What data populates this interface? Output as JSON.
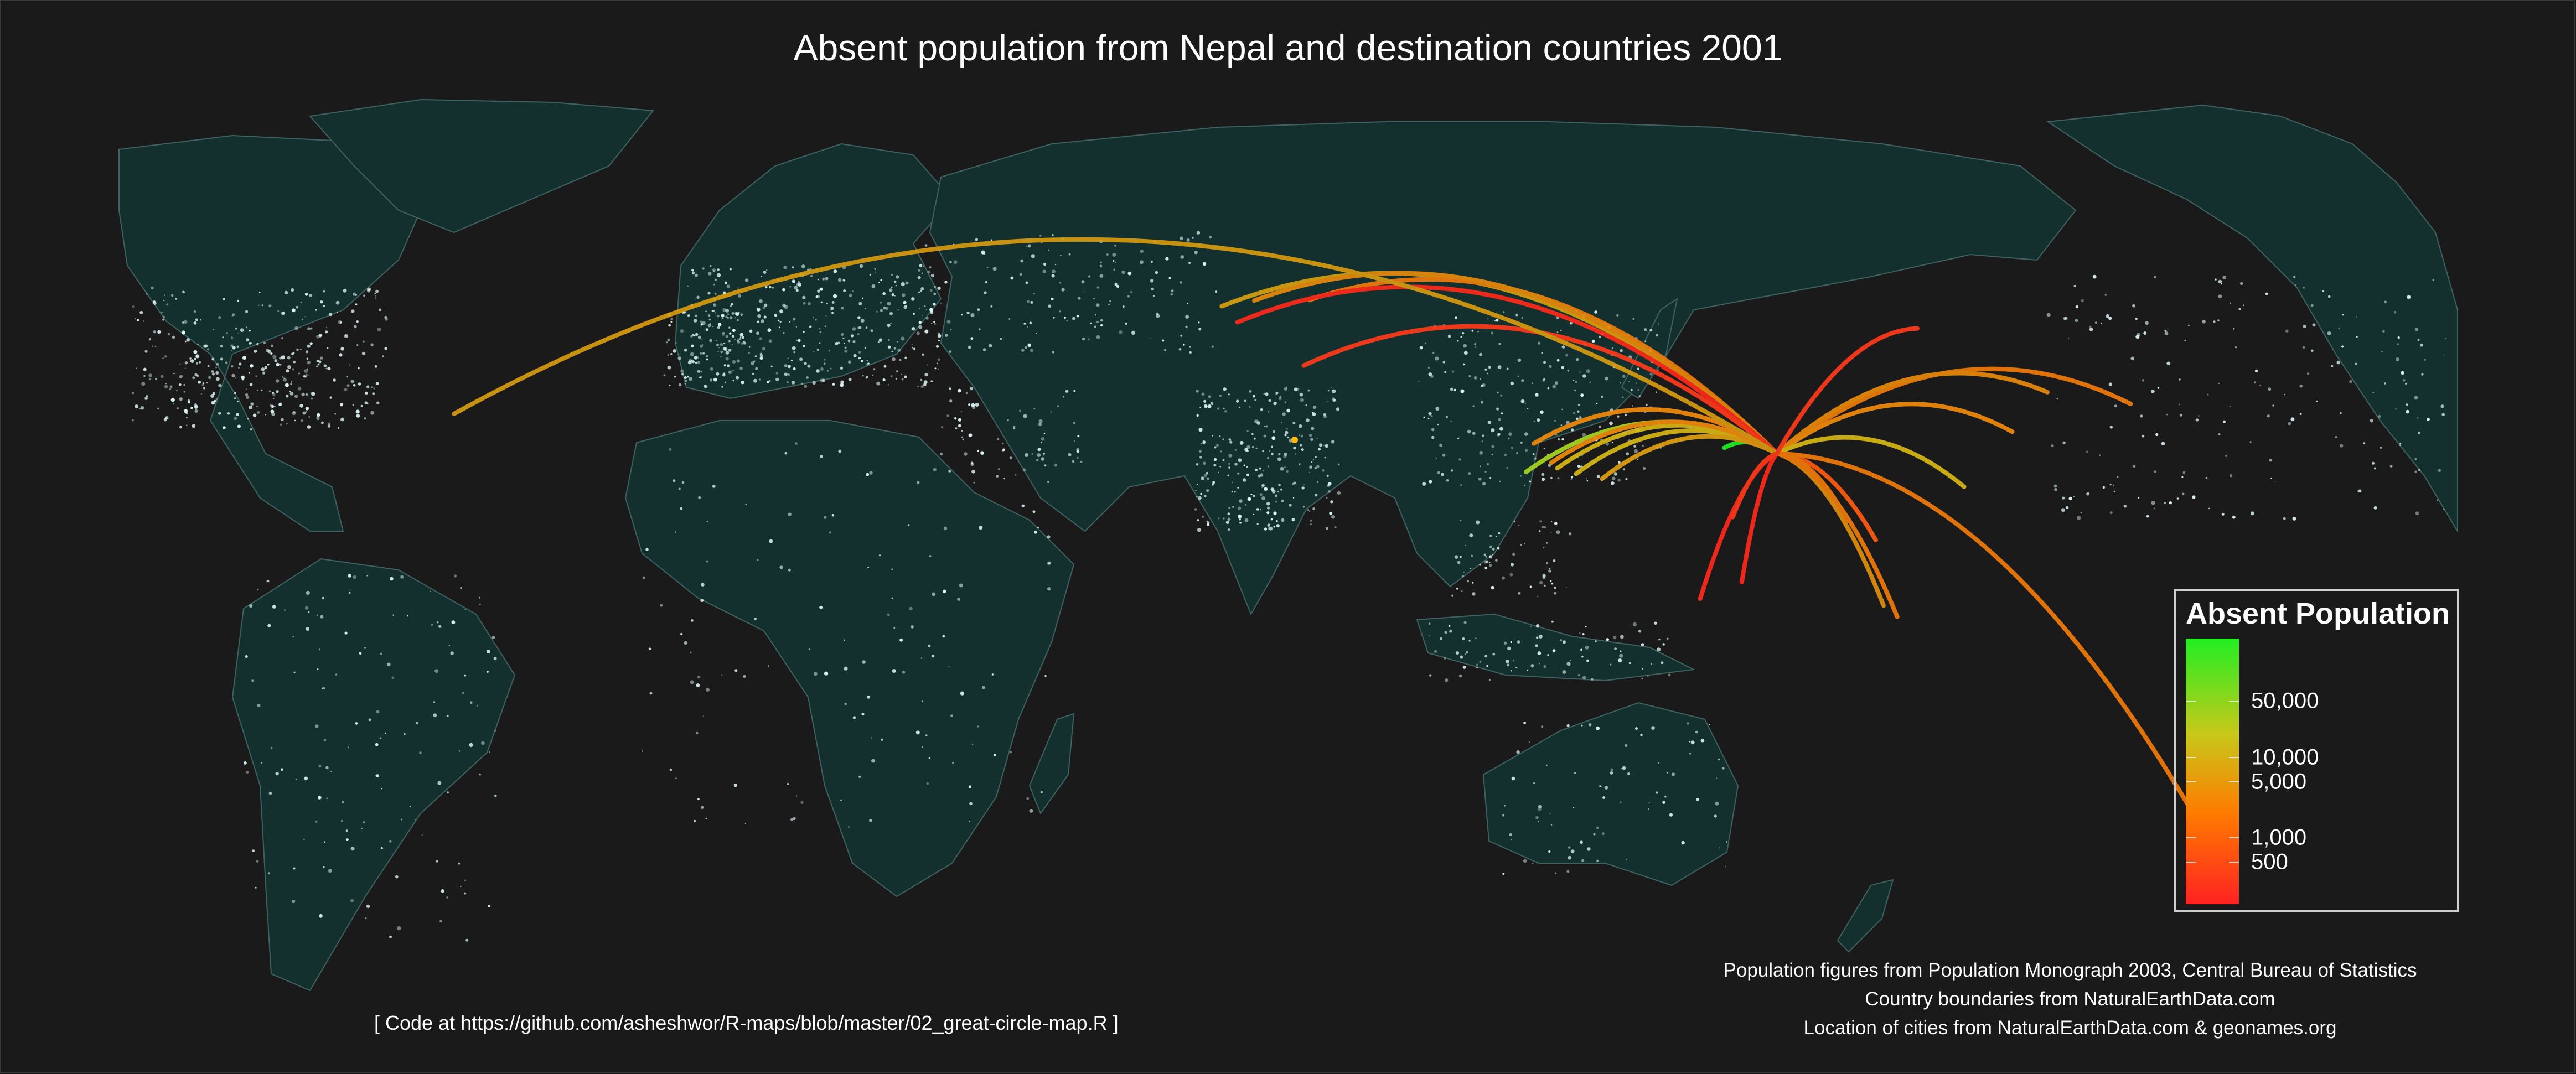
{
  "title": "Absent population from Nepal and destination countries 2001",
  "colors": {
    "background": "#1a1a1a",
    "land": "#13302f",
    "land_border": "#3f6362",
    "city_lights": "#e6ffff",
    "low": "#ff2222",
    "mid": "#ff7a00",
    "high": "#c8c81a",
    "top": "#22ee22"
  },
  "legend": {
    "title": "Absent Population",
    "ticks": [
      {
        "value": 50000,
        "label": "50,000"
      },
      {
        "value": 10000,
        "label": "10,000"
      },
      {
        "value": 5000,
        "label": "5,000"
      },
      {
        "value": 1000,
        "label": "1,000"
      },
      {
        "value": 500,
        "label": "500"
      }
    ]
  },
  "origin": {
    "lon": 85.3,
    "lat": 27.7
  },
  "flows": [
    {
      "lon": 77.2,
      "lat": 28.6,
      "color": "#22ee22"
    },
    {
      "lon": 46.7,
      "lat": 24.7,
      "color": "#a8d620"
    },
    {
      "lon": 51.5,
      "lat": 25.3,
      "color": "#d7b814"
    },
    {
      "lon": 54.4,
      "lat": 24.4,
      "color": "#d7b814"
    },
    {
      "lon": 58.4,
      "lat": 23.6,
      "color": "#e0a010"
    },
    {
      "lon": 47.9,
      "lat": 29.3,
      "color": "#f08a0a"
    },
    {
      "lon": 50.6,
      "lat": 26.2,
      "color": "#f08a0a"
    },
    {
      "lon": -0.1,
      "lat": 51.5,
      "color": "#d7a010"
    },
    {
      "lon": 13.4,
      "lat": 52.5,
      "color": "#f07a08"
    },
    {
      "lon": 4.9,
      "lat": 52.4,
      "color": "#e88a0a"
    },
    {
      "lon": 2.3,
      "lat": 48.9,
      "color": "#ff2a1a"
    },
    {
      "lon": 12.5,
      "lat": 41.9,
      "color": "#ff3a1a"
    },
    {
      "lon": -118.2,
      "lat": 34.1,
      "color": "#d79a10"
    },
    {
      "lon": 139.7,
      "lat": 35.7,
      "color": "#f07a08"
    },
    {
      "lon": 126.9,
      "lat": 37.6,
      "color": "#e88a0a"
    },
    {
      "lon": 121.5,
      "lat": 31.2,
      "color": "#f08a0a"
    },
    {
      "lon": 114.1,
      "lat": 22.3,
      "color": "#d7b814"
    },
    {
      "lon": 101.7,
      "lat": 3.1,
      "color": "#e0900c"
    },
    {
      "lon": 103.8,
      "lat": 1.3,
      "color": "#f07a08"
    },
    {
      "lon": 100.5,
      "lat": 13.7,
      "color": "#ff5a10"
    },
    {
      "lon": 96.2,
      "lat": 16.8,
      "color": "#f07a08"
    },
    {
      "lon": 151.2,
      "lat": -33.9,
      "color": "#f07a08"
    },
    {
      "lon": 106.9,
      "lat": 47.9,
      "color": "#ff3a1a"
    },
    {
      "lon": 73.5,
      "lat": 4.2,
      "color": "#ff2a1a"
    },
    {
      "lon": 79.9,
      "lat": 6.9,
      "color": "#ff2a1a"
    },
    {
      "lon": 78.5,
      "lat": 17.4,
      "color": "#ff3a1a"
    }
  ],
  "credits": [
    "Population figures from Population Monograph 2003, Central Bureau of Statistics",
    "Country boundaries from NaturalEarthData.com",
    "Location of cities from NaturalEarthData.com & geonames.org"
  ],
  "code_note": "[ Code at https://github.com/asheshwor/R-maps/blob/master/02_great-circle-map.R ]"
}
